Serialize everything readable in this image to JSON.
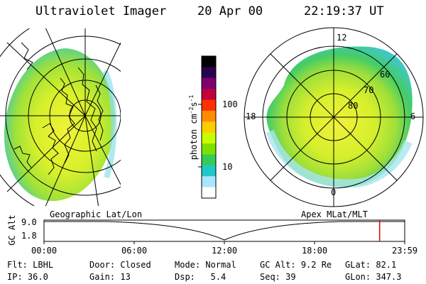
{
  "header": {
    "instrument": "Ultraviolet Imager",
    "date": "20 Apr 00",
    "time": "22:19:37 UT"
  },
  "colorbar": {
    "unit_label": "photon cm",
    "unit_exp1": "-2",
    "unit_mid": "s",
    "unit_exp2": "-1",
    "tick_100": "100",
    "tick_10": "10",
    "colors": [
      "#000000",
      "#2a0050",
      "#7a0070",
      "#c0003a",
      "#ff3000",
      "#ff8c00",
      "#ffcc00",
      "#c8ff00",
      "#7ee000",
      "#33cc55",
      "#22c8c8",
      "#a8e6ff",
      "#ffffff"
    ]
  },
  "geo_map": {
    "label": "Geographic Lat/Lon"
  },
  "polar_plot": {
    "label": "Apex MLat/MLT",
    "mlt_labels": {
      "top": "12",
      "left": "18",
      "right": "6",
      "bottom": "0"
    },
    "lat_labels": [
      "60",
      "70",
      "80"
    ]
  },
  "timeline": {
    "axis_label": "GC Alt",
    "y_top": "9.0",
    "y_bottom": "1.8",
    "x_ticks": [
      "00:00",
      "06:00",
      "12:00",
      "18:00",
      "23:59"
    ],
    "marker_time_hours": 22.33
  },
  "status": {
    "row1": [
      {
        "key": "Flt:",
        "value": "LBHL"
      },
      {
        "key": "Door:",
        "value": "Closed"
      },
      {
        "key": "Mode:",
        "value": "Normal"
      },
      {
        "key": "GC Alt:",
        "value": "9.2 Re"
      },
      {
        "key": "GLat:",
        "value": "82.1"
      }
    ],
    "row2": [
      {
        "key": "IP:",
        "value": "36.0"
      },
      {
        "key": "Gain:",
        "value": "13"
      },
      {
        "key": "Dsp:",
        "value": "5.4"
      },
      {
        "key": "Seq:",
        "value": "39"
      },
      {
        "key": "GLon:",
        "value": "347.3"
      }
    ]
  }
}
